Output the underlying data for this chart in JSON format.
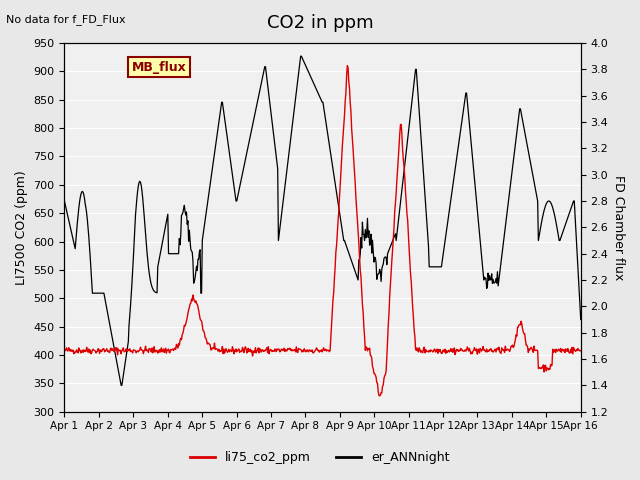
{
  "title": "CO2 in ppm",
  "no_data_text": "No data for f_FD_Flux",
  "ylabel_left": "LI7500 CO2 (ppm)",
  "ylabel_right": "FD Chamber flux",
  "ylim_left": [
    300,
    950
  ],
  "ylim_right": [
    1.2,
    4.0
  ],
  "xtick_labels": [
    "Apr 1",
    "Apr 2",
    "Apr 3",
    "Apr 4",
    "Apr 5",
    "Apr 6",
    "Apr 7",
    "Apr 8",
    "Apr 9",
    "Apr 10",
    "Apr 11",
    "Apr 12",
    "Apr 13",
    "Apr 14",
    "Apr 15",
    "Apr 16"
  ],
  "legend_label_box": "MB_flux",
  "legend_entries": [
    {
      "label": "li75_co2_ppm",
      "color": "#dd0000",
      "lw": 1.5
    },
    {
      "label": "er_ANNnight",
      "color": "#000000",
      "lw": 1.2
    }
  ],
  "background_color": "#e8e8e8",
  "plot_bg_color": "#f0f0f0",
  "title_fontsize": 13,
  "axis_label_fontsize": 9,
  "left_ticks": [
    300,
    350,
    400,
    450,
    500,
    550,
    600,
    650,
    700,
    750,
    800,
    850,
    900,
    950
  ],
  "right_ticks": [
    1.2,
    1.4,
    1.6,
    1.8,
    2.0,
    2.2,
    2.4,
    2.6,
    2.8,
    3.0,
    3.2,
    3.4,
    3.6,
    3.8,
    4.0
  ]
}
